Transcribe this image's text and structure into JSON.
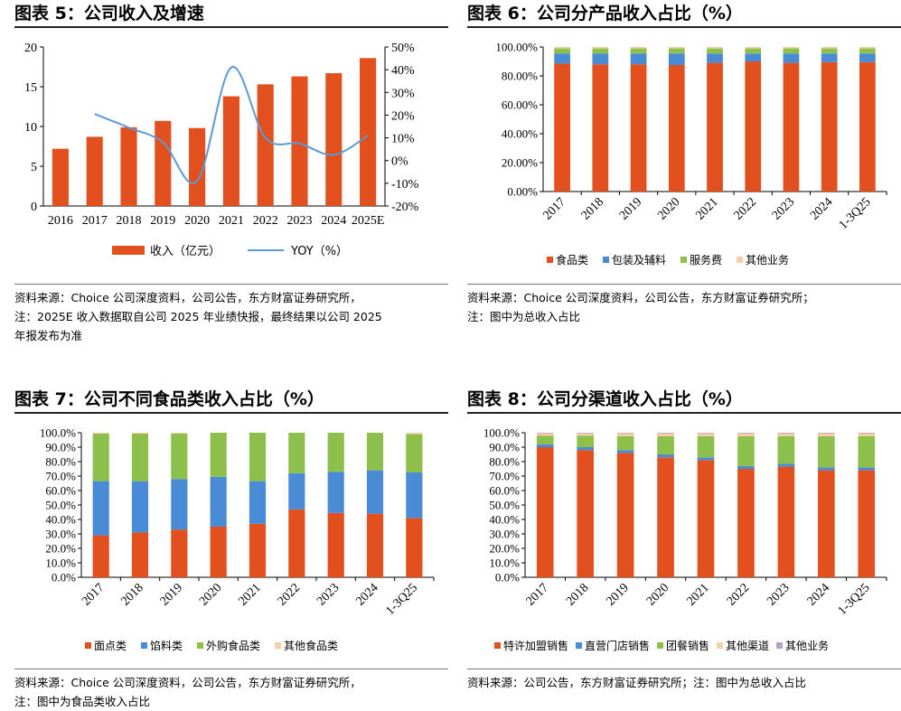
{
  "panels": [
    {
      "id": "p5",
      "heading": "图表 5：",
      "title": "公司收入及增速",
      "notes": [
        "资料来源：Choice 公司深度资料，公司公告，东方财富证券研究所，",
        "注：2025E 收入数据取自公司 2025 年业绩快报，最终结果以公司 2025",
        "年报发布为准"
      ]
    },
    {
      "id": "p6",
      "heading": "图表 6：",
      "title": "公司分产品收入占比（%）",
      "notes": [
        "资料来源：Choice 公司深度资料，公司公告，东方财富证券研究所；",
        "注：图中为总收入占比"
      ]
    },
    {
      "id": "p7",
      "heading": "图表 7：",
      "title": "公司不同食品类收入占比（%）",
      "notes": [
        "资料来源：Choice 公司深度资料，公司公告，东方财富证券研究所，",
        "注：图中为食品类收入占比"
      ]
    },
    {
      "id": "p8",
      "heading": "图表 8：",
      "title": "公司分渠道收入占比（%）",
      "notes": [
        "资料来源：公司公告，东方财富证券研究所；注：图中为总收入占比"
      ]
    }
  ],
  "chart_data": [
    {
      "type": "bar",
      "categories": [
        "2016",
        "2017",
        "2018",
        "2019",
        "2020",
        "2021",
        "2022",
        "2023",
        "2024",
        "2025E"
      ],
      "series": [
        {
          "name": "收入（亿元）",
          "type": "bar",
          "axis": "left",
          "color": "#E2501E",
          "values": [
            7.2,
            8.7,
            9.9,
            10.7,
            9.8,
            13.8,
            15.3,
            16.3,
            16.7,
            18.6
          ]
        },
        {
          "name": "YOY（%）",
          "type": "line",
          "axis": "right",
          "color": "#5B9BD5",
          "values": [
            null,
            20.5,
            14.5,
            8.0,
            -9.0,
            41.0,
            10.0,
            7.5,
            2.5,
            11.0
          ]
        }
      ],
      "ylim": [
        0,
        20
      ],
      "yticks": [
        0,
        5,
        10,
        15,
        20
      ],
      "y2lim": [
        -20,
        50
      ],
      "y2ticks": [
        "-20%",
        "-10%",
        "0%",
        "10%",
        "20%",
        "30%",
        "40%",
        "50%"
      ],
      "legend": "bottom",
      "grid": false
    },
    {
      "type": "bar",
      "stacked": true,
      "categories": [
        "2017",
        "2018",
        "2019",
        "2020",
        "2021",
        "2022",
        "2023",
        "2024",
        "1-3Q25"
      ],
      "series": [
        {
          "name": "食品类",
          "color": "#E2501E",
          "values": [
            88.5,
            88.0,
            88.0,
            87.5,
            89.0,
            90.0,
            89.0,
            89.5,
            89.5
          ]
        },
        {
          "name": "包装及辅料",
          "color": "#4A8BD6",
          "values": [
            7.0,
            7.5,
            7.5,
            8.0,
            6.5,
            5.5,
            6.5,
            6.0,
            6.0
          ]
        },
        {
          "name": "服务费",
          "color": "#8DC04A",
          "values": [
            3.5,
            3.5,
            3.5,
            3.5,
            3.5,
            3.5,
            3.5,
            3.5,
            3.5
          ]
        },
        {
          "name": "其他业务",
          "color": "#F7CFA6",
          "values": [
            1.0,
            1.0,
            1.0,
            1.0,
            1.0,
            1.0,
            1.0,
            1.0,
            1.0
          ]
        }
      ],
      "ylim": [
        0,
        100
      ],
      "yticks": [
        "0.00%",
        "20.00%",
        "40.00%",
        "60.00%",
        "80.00%",
        "100.00%"
      ],
      "legend": "bottom",
      "grid": false
    },
    {
      "type": "bar",
      "stacked": true,
      "categories": [
        "2017",
        "2018",
        "2019",
        "2020",
        "2021",
        "2022",
        "2023",
        "2024",
        "1-3Q25"
      ],
      "series": [
        {
          "name": "面点类",
          "color": "#E2501E",
          "values": [
            29.0,
            31.0,
            33.0,
            35.0,
            37.0,
            47.0,
            44.5,
            44.0,
            41.0
          ]
        },
        {
          "name": "馅料类",
          "color": "#4A8BD6",
          "values": [
            37.5,
            35.5,
            35.0,
            34.5,
            29.5,
            25.0,
            28.5,
            30.0,
            31.5
          ]
        },
        {
          "name": "外购食品类",
          "color": "#8DC04A",
          "values": [
            33.0,
            33.0,
            31.5,
            30.5,
            33.5,
            28.0,
            27.0,
            26.0,
            26.5
          ]
        },
        {
          "name": "其他食品类",
          "color": "#F7CFA6",
          "values": [
            0.5,
            0.5,
            0.5,
            0.0,
            0.0,
            0.0,
            0.0,
            0.0,
            1.0
          ]
        }
      ],
      "ylim": [
        0,
        100
      ],
      "yticks": [
        "0.0%",
        "10.0%",
        "20.0%",
        "30.0%",
        "40.0%",
        "50.0%",
        "60.0%",
        "70.0%",
        "80.0%",
        "90.0%",
        "100.0%"
      ],
      "legend": "bottom",
      "grid": false
    },
    {
      "type": "bar",
      "stacked": true,
      "categories": [
        "2017",
        "2018",
        "2019",
        "2020",
        "2021",
        "2022",
        "2023",
        "2024",
        "1-3Q25"
      ],
      "series": [
        {
          "name": "特许加盟销售",
          "color": "#E2501E",
          "values": [
            90.0,
            88.0,
            86.0,
            83.0,
            81.0,
            75.0,
            76.5,
            74.0,
            74.0
          ]
        },
        {
          "name": "直营门店销售",
          "color": "#4A8BD6",
          "values": [
            2.0,
            2.0,
            2.0,
            2.0,
            2.0,
            2.0,
            2.0,
            2.0,
            2.0
          ]
        },
        {
          "name": "团餐销售",
          "color": "#8DC04A",
          "values": [
            6.0,
            8.0,
            9.5,
            12.5,
            14.5,
            20.5,
            19.0,
            21.5,
            21.5
          ]
        },
        {
          "name": "其他渠道",
          "color": "#F7CFA6",
          "values": [
            1.5,
            1.5,
            2.0,
            2.0,
            2.0,
            2.0,
            2.0,
            2.0,
            2.0
          ]
        },
        {
          "name": "其他业务",
          "color": "#B3A2C7",
          "values": [
            0.5,
            0.5,
            0.5,
            0.5,
            0.5,
            0.5,
            0.5,
            0.5,
            0.5
          ]
        }
      ],
      "ylim": [
        0,
        100
      ],
      "yticks": [
        "0.0%",
        "10.0%",
        "20.0%",
        "30.0%",
        "40.0%",
        "50.0%",
        "60.0%",
        "70.0%",
        "80.0%",
        "90.0%",
        "100.0%"
      ],
      "legend": "bottom",
      "grid": false
    }
  ]
}
